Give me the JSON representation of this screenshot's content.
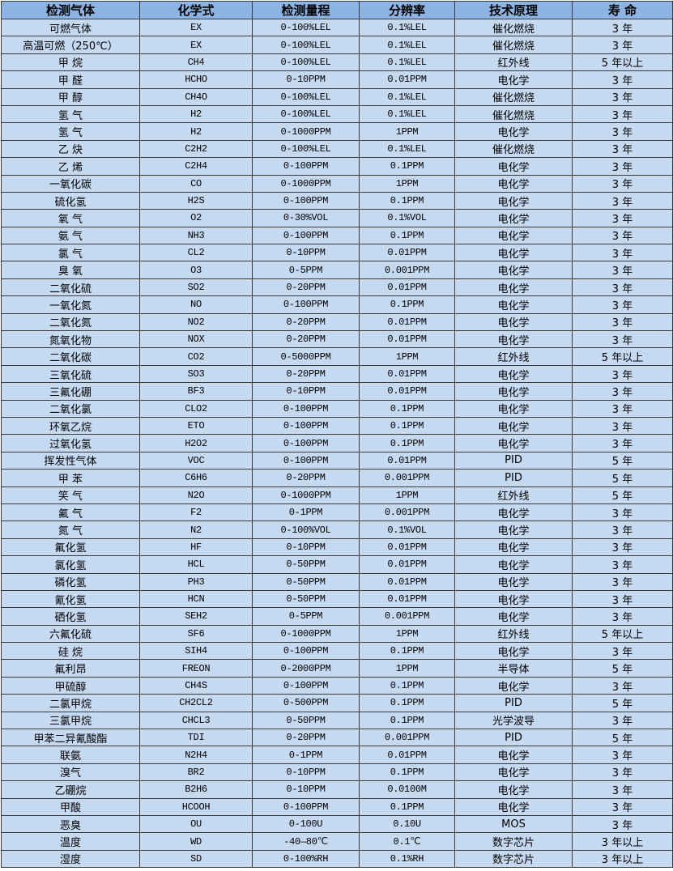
{
  "headers": [
    "检测气体",
    "化学式",
    "检测量程",
    "分辨率",
    "技术原理",
    "寿 命"
  ],
  "rows": [
    [
      "可燃气体",
      "EX",
      "0-100%LEL",
      "0.1%LEL",
      "催化燃烧",
      "3 年"
    ],
    [
      "高温可燃（250℃）",
      "EX",
      "0-100%LEL",
      "0.1%LEL",
      "催化燃烧",
      "3 年"
    ],
    [
      "甲 烷",
      "CH4",
      "0-100%LEL",
      "0.1%LEL",
      "红外线",
      "5 年以上"
    ],
    [
      "甲 醛",
      "HCHO",
      "0-10PPM",
      "0.01PPM",
      "电化学",
      "3 年"
    ],
    [
      "甲 醇",
      "CH4O",
      "0-100%LEL",
      "0.1%LEL",
      "催化燃烧",
      "3 年"
    ],
    [
      "氢 气",
      "H2",
      "0-100%LEL",
      "0.1%LEL",
      "催化燃烧",
      "3 年"
    ],
    [
      "氢 气",
      "H2",
      "0-1000PPM",
      "1PPM",
      "电化学",
      "3 年"
    ],
    [
      "乙 炔",
      "C2H2",
      "0-100%LEL",
      "0.1%LEL",
      "催化燃烧",
      "3 年"
    ],
    [
      "乙 烯",
      "C2H4",
      "0-100PPM",
      "0.1PPM",
      "电化学",
      "3 年"
    ],
    [
      "一氧化碳",
      "CO",
      "0-1000PPM",
      "1PPM",
      "电化学",
      "3 年"
    ],
    [
      "硫化氢",
      "H2S",
      "0-100PPM",
      "0.1PPM",
      "电化学",
      "3 年"
    ],
    [
      "氧 气",
      "O2",
      "0-30%VOL",
      "0.1%VOL",
      "电化学",
      "3 年"
    ],
    [
      "氨 气",
      "NH3",
      "0-100PPM",
      "0.1PPM",
      "电化学",
      "3 年"
    ],
    [
      "氯 气",
      "CL2",
      "0-10PPM",
      "0.01PPM",
      "电化学",
      "3 年"
    ],
    [
      "臭 氧",
      "O3",
      "0-5PPM",
      "0.001PPM",
      "电化学",
      "3 年"
    ],
    [
      "二氧化硫",
      "SO2",
      "0-20PPM",
      "0.01PPM",
      "电化学",
      "3 年"
    ],
    [
      "一氧化氮",
      "NO",
      "0-100PPM",
      "0.1PPM",
      "电化学",
      "3 年"
    ],
    [
      "二氧化氮",
      "NO2",
      "0-20PPM",
      "0.01PPM",
      "电化学",
      "3 年"
    ],
    [
      "氮氧化物",
      "NOX",
      "0-20PPM",
      "0.01PPM",
      "电化学",
      "3 年"
    ],
    [
      "二氧化碳",
      "CO2",
      "0-5000PPM",
      "1PPM",
      "红外线",
      "5 年以上"
    ],
    [
      "三氧化硫",
      "SO3",
      "0-20PPM",
      "0.01PPM",
      "电化学",
      "3 年"
    ],
    [
      "三氟化硼",
      "BF3",
      "0-10PPM",
      "0.01PPM",
      "电化学",
      "3 年"
    ],
    [
      "二氧化氯",
      "CLO2",
      "0-100PPM",
      "0.1PPM",
      "电化学",
      "3 年"
    ],
    [
      "环氧乙烷",
      "ETO",
      "0-100PPM",
      "0.1PPM",
      "电化学",
      "3 年"
    ],
    [
      "过氧化氢",
      "H2O2",
      "0-100PPM",
      "0.1PPM",
      "电化学",
      "3 年"
    ],
    [
      "挥发性气体",
      "VOC",
      "0-100PPM",
      "0.01PPM",
      "PID",
      "5 年"
    ],
    [
      "甲 苯",
      "C6H6",
      "0-20PPM",
      "0.001PPM",
      "PID",
      "5 年"
    ],
    [
      "笑 气",
      "N2O",
      "0-1000PPM",
      "1PPM",
      "红外线",
      "5 年"
    ],
    [
      "氟 气",
      "F2",
      "0-1PPM",
      "0.001PPM",
      "电化学",
      "3 年"
    ],
    [
      "氮 气",
      "N2",
      "0-100%VOL",
      "0.1%VOL",
      "电化学",
      "3 年"
    ],
    [
      "氟化氢",
      "HF",
      "0-10PPM",
      "0.01PPM",
      "电化学",
      "3 年"
    ],
    [
      "氯化氢",
      "HCL",
      "0-50PPM",
      "0.01PPM",
      "电化学",
      "3 年"
    ],
    [
      "磷化氢",
      "PH3",
      "0-50PPM",
      "0.01PPM",
      "电化学",
      "3 年"
    ],
    [
      "氰化氢",
      "HCN",
      "0-50PPM",
      "0.01PPM",
      "电化学",
      "3 年"
    ],
    [
      "硒化氢",
      "SEH2",
      "0-5PPM",
      "0.001PPM",
      "电化学",
      "3 年"
    ],
    [
      "六氟化硫",
      "SF6",
      "0-1000PPM",
      "1PPM",
      "红外线",
      "5 年以上"
    ],
    [
      "硅 烷",
      "SIH4",
      "0-100PPM",
      "0.1PPM",
      "电化学",
      "3 年"
    ],
    [
      "氟利昂",
      "FREON",
      "0-2000PPM",
      "1PPM",
      "半导体",
      "5 年"
    ],
    [
      "甲硫醇",
      "CH4S",
      "0-100PPM",
      "0.1PPM",
      "电化学",
      "3 年"
    ],
    [
      "二氯甲烷",
      "CH2CL2",
      "0-500PPM",
      "0.1PPM",
      "PID",
      "5 年"
    ],
    [
      "三氯甲烷",
      "CHCL3",
      "0-50PPM",
      "0.1PPM",
      "光学波导",
      "3 年"
    ],
    [
      "甲苯二异氰酸酯",
      "TDI",
      "0-20PPM",
      "0.001PPM",
      "PID",
      "5 年"
    ],
    [
      "联氨",
      "N2H4",
      "0-1PPM",
      "0.01PPM",
      "电化学",
      "3 年"
    ],
    [
      "溴气",
      "BR2",
      "0-10PPM",
      "0.1PPM",
      "电化学",
      "3 年"
    ],
    [
      "乙硼烷",
      "B2H6",
      "0-10PPM",
      "0.0100M",
      "电化学",
      "3 年"
    ],
    [
      "甲酸",
      "HCOOH",
      "0-100PPM",
      "0.1PPM",
      "电化学",
      "3 年"
    ],
    [
      "恶臭",
      "OU",
      "0-100U",
      "0.10U",
      "MOS",
      "3 年"
    ],
    [
      "温度",
      "WD",
      "-40—80℃",
      "0.1℃",
      "数字芯片",
      "3 年以上"
    ],
    [
      "湿度",
      "SD",
      "0-100%RH",
      "0.1%RH",
      "数字芯片",
      "3 年以上"
    ]
  ]
}
